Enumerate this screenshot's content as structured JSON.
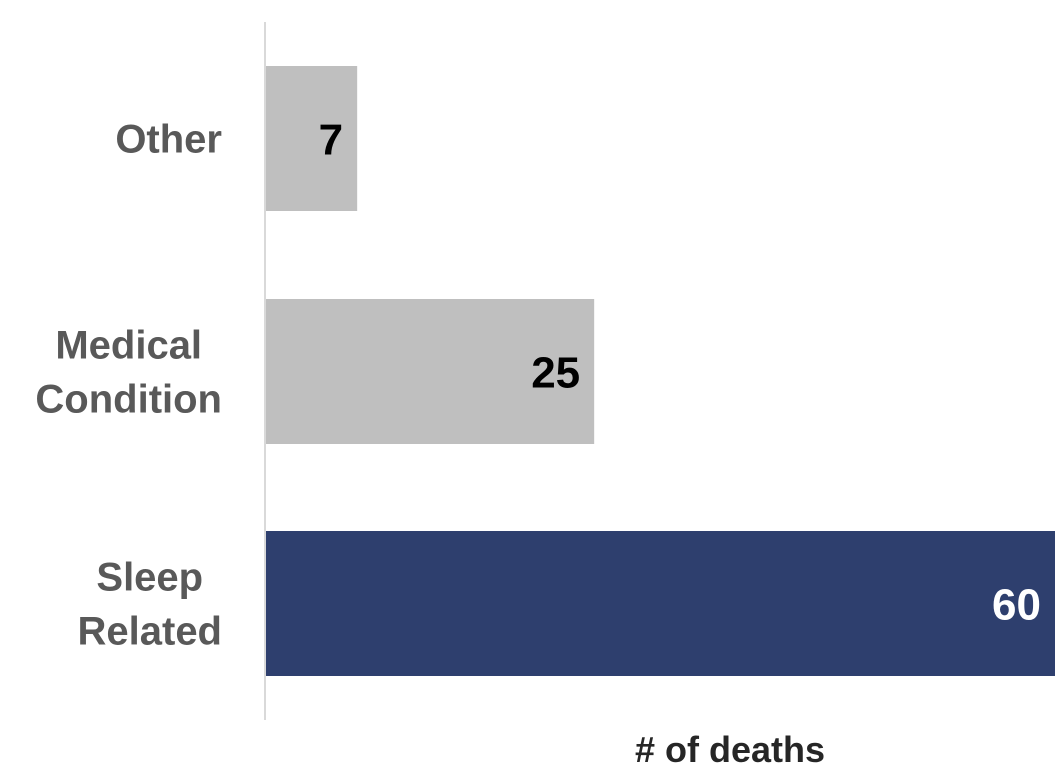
{
  "chart_data": {
    "type": "bar",
    "orientation": "horizontal",
    "categories": [
      [
        "Other"
      ],
      [
        "Medical",
        "Condition"
      ],
      [
        "Sleep",
        "Related"
      ]
    ],
    "values": [
      7,
      25,
      60
    ],
    "value_labels": [
      "7",
      "25",
      "60"
    ],
    "colors": [
      "#bfbfbf",
      "#bfbfbf",
      "#2e3f6e"
    ],
    "label_colors": [
      "#000000",
      "#000000",
      "#ffffff"
    ],
    "axis_color": "#d9d9d9",
    "xlabel": "# of deaths",
    "ylabel": "",
    "title": "",
    "xlim": [
      0,
      60
    ],
    "grid": false,
    "legend": "none"
  }
}
